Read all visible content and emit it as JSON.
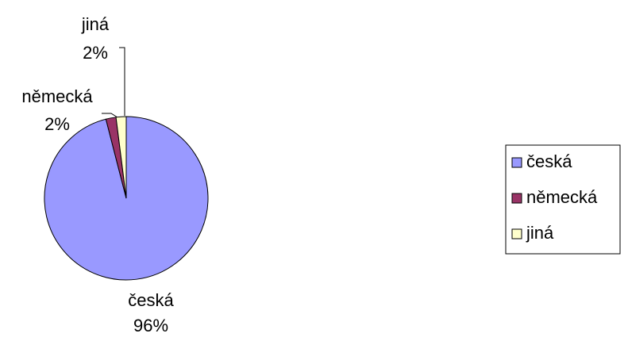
{
  "chart_data": {
    "type": "pie",
    "categories": [
      "česká",
      "německá",
      "jiná"
    ],
    "values": [
      96,
      2,
      2
    ],
    "value_labels": [
      "96%",
      "2%",
      "2%"
    ],
    "colors": [
      "#9999ff",
      "#993366",
      "#ffffcc"
    ],
    "legend": "right"
  }
}
